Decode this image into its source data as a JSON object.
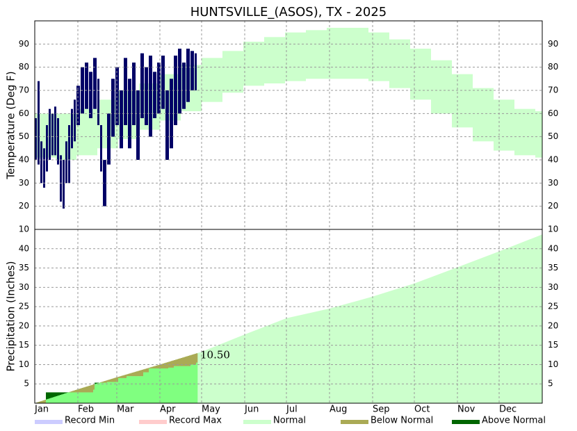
{
  "chart_data": [
    {
      "type": "range-bar",
      "title": "HUNTSVILLE_(ASOS), TX - 2025",
      "ylabel": "Temperature (Deg F)",
      "ylim": [
        10,
        100
      ],
      "yticks": [
        10,
        20,
        30,
        40,
        50,
        60,
        70,
        80,
        90
      ],
      "grid": true,
      "normal": {
        "x": [
          1,
          16,
          31,
          46,
          61,
          76,
          91,
          106,
          121,
          136,
          151,
          166,
          181,
          196,
          211,
          226,
          241,
          256,
          271,
          286,
          301,
          316,
          331,
          346,
          361
        ],
        "high": [
          60,
          60,
          62,
          66,
          70,
          73,
          77,
          81,
          84,
          87,
          91,
          93,
          95,
          96,
          97,
          97,
          95,
          92,
          88,
          83,
          77,
          71,
          66,
          62,
          61
        ],
        "low": [
          41,
          40,
          42,
          45,
          49,
          53,
          57,
          61,
          65,
          69,
          72,
          73,
          74,
          75,
          75,
          75,
          74,
          71,
          66,
          60,
          54,
          48,
          44,
          42,
          41
        ]
      },
      "observed": {
        "color": "#000066",
        "x": [
          1,
          3,
          5,
          7,
          9,
          11,
          13,
          15,
          17,
          19,
          21,
          23,
          25,
          27,
          29,
          31,
          34,
          37,
          40,
          43,
          46,
          48,
          50,
          53,
          56,
          59,
          62,
          65,
          68,
          71,
          74,
          77,
          80,
          83,
          86,
          89,
          92,
          95,
          98,
          101,
          104,
          107,
          110,
          113,
          116
        ],
        "high": [
          58,
          74,
          48,
          45,
          55,
          62,
          60,
          63,
          58,
          42,
          40,
          48,
          55,
          62,
          66,
          72,
          80,
          82,
          78,
          84,
          75,
          55,
          40,
          60,
          75,
          80,
          70,
          84,
          75,
          82,
          70,
          86,
          80,
          85,
          78,
          82,
          85,
          70,
          75,
          85,
          88,
          82,
          88,
          87,
          86
        ],
        "low": [
          40,
          38,
          30,
          28,
          35,
          40,
          42,
          42,
          38,
          22,
          19,
          30,
          30,
          45,
          48,
          55,
          60,
          62,
          58,
          62,
          55,
          35,
          20,
          38,
          50,
          55,
          45,
          55,
          45,
          55,
          40,
          58,
          55,
          50,
          58,
          60,
          62,
          40,
          45,
          55,
          60,
          62,
          65,
          70,
          70
        ]
      }
    },
    {
      "type": "cumulative-area",
      "ylabel": "Precipitation (Inches)",
      "xlim": [
        1,
        366
      ],
      "xticks": [
        {
          "value": 1,
          "label": "Jan"
        },
        {
          "value": 32,
          "label": "Feb"
        },
        {
          "value": 60,
          "label": "Mar"
        },
        {
          "value": 91,
          "label": "Apr"
        },
        {
          "value": 121,
          "label": "May"
        },
        {
          "value": 152,
          "label": "Jun"
        },
        {
          "value": 182,
          "label": "Jul"
        },
        {
          "value": 213,
          "label": "Aug"
        },
        {
          "value": 244,
          "label": "Sep"
        },
        {
          "value": 274,
          "label": "Oct"
        },
        {
          "value": 305,
          "label": "Nov"
        },
        {
          "value": 335,
          "label": "Dec"
        }
      ],
      "ylim": [
        0,
        45
      ],
      "yticks": [
        5,
        10,
        15,
        20,
        25,
        30,
        35,
        40
      ],
      "grid": true,
      "normal": {
        "x": [
          1,
          32,
          60,
          91,
          121,
          152,
          182,
          213,
          244,
          274,
          305,
          335,
          366
        ],
        "values": [
          0,
          3.6,
          6.7,
          10.0,
          13.3,
          17.8,
          22.0,
          24.5,
          27.6,
          31.0,
          35.2,
          39.3,
          43.7
        ]
      },
      "observed": {
        "color": "#80ff80",
        "x": [
          1,
          9,
          31,
          43,
          44,
          53,
          61,
          67,
          79,
          83,
          97,
          101,
          113,
          117
        ],
        "values": [
          0,
          2.8,
          2.8,
          3.5,
          5.3,
          5.5,
          6.5,
          7.0,
          8.0,
          9.0,
          9.2,
          9.6,
          10.0,
          10.5
        ],
        "value_labels": [
          null,
          null,
          null,
          null,
          null,
          null,
          null,
          null,
          null,
          null,
          null,
          null,
          null,
          "10.50"
        ]
      }
    }
  ],
  "legend": [
    {
      "name": "Record Min",
      "color": "#ccccff"
    },
    {
      "name": "Record Max",
      "color": "#ffcccc"
    },
    {
      "name": "Normal",
      "color": "#ccffcc"
    },
    {
      "name": "Below Normal",
      "color": "#aaaa55"
    },
    {
      "name": "Above Normal",
      "color": "#006600"
    }
  ]
}
